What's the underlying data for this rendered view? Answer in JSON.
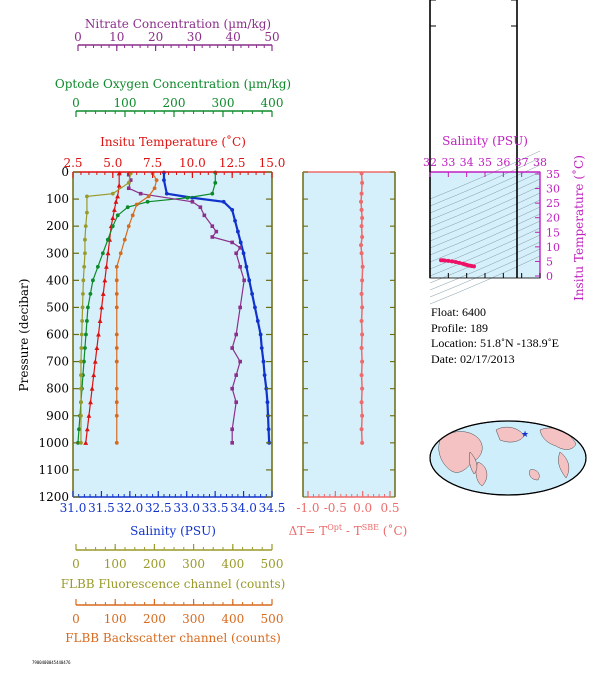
{
  "colors": {
    "nitrate": "#8b2f8b",
    "oxygen": "#0d8a2a",
    "temperature": "#dd1111",
    "salinity": "#1133cc",
    "fluorescence": "#9a9a2a",
    "backscatter": "#d86a1e",
    "delta": "#ee6b6b",
    "plot_bg": "#d5f0fa",
    "ts_salinity": "#c020c0"
  },
  "axes": {
    "nitrate": {
      "label": "Nitrate Concentration (µm/kg)",
      "ticks": [
        "0",
        "10",
        "20",
        "30",
        "40",
        "50"
      ],
      "range": [
        0,
        50
      ]
    },
    "oxygen": {
      "label": "Optode Oxygen Concentration (µm/kg)",
      "ticks": [
        "0",
        "100",
        "200",
        "300",
        "400"
      ],
      "range": [
        0,
        400
      ]
    },
    "temperature": {
      "label": "Insitu Temperature (˚C)",
      "ticks": [
        "2.5",
        "5.0",
        "7.5",
        "10.0",
        "12.5",
        "15.0"
      ],
      "range": [
        2.5,
        15
      ]
    },
    "pressure": {
      "label": "Pressure (decibar)",
      "ticks": [
        "0",
        "100",
        "200",
        "300",
        "400",
        "500",
        "600",
        "700",
        "800",
        "900",
        "1000",
        "1100",
        "1200"
      ],
      "range": [
        0,
        1200
      ]
    },
    "salinity": {
      "label": "Salinity (PSU)",
      "ticks": [
        "31.0",
        "31.5",
        "32.0",
        "32.5",
        "33.0",
        "33.5",
        "34.0",
        "34.5"
      ],
      "range": [
        31,
        34.5
      ]
    },
    "fluorescence": {
      "label": "FLBB Fluorescence channel (counts)",
      "ticks": [
        "0",
        "100",
        "200",
        "300",
        "400",
        "500"
      ],
      "range": [
        0,
        500
      ]
    },
    "backscatter": {
      "label": "FLBB Backscatter channel (counts)",
      "ticks": [
        "0",
        "100",
        "200",
        "300",
        "400",
        "500"
      ],
      "range": [
        0,
        500
      ]
    },
    "delta": {
      "label_main": "ΔT= T",
      "label_sup1": "Opt",
      "label_mid": " - T",
      "label_sup2": "SBE",
      "label_end": " (˚C)",
      "ticks": [
        "-1.0",
        "-0.5",
        "0.0",
        "0.5"
      ],
      "range": [
        -1.0,
        0.5
      ]
    },
    "ts_salinity": {
      "label": "Salinity (PSU)",
      "ticks": [
        "32",
        "33",
        "34",
        "35",
        "36",
        "37",
        "38"
      ],
      "range": [
        32,
        38
      ]
    },
    "ts_temperature": {
      "label": "Insitu Temperature (˚C)",
      "ticks": [
        "0",
        "5",
        "10",
        "15",
        "20",
        "25",
        "30",
        "35"
      ],
      "range": [
        0,
        35
      ]
    }
  },
  "info": {
    "float": "Float:  6400",
    "profile": "Profile:  189",
    "location": "Location:  51.8˚N  -138.9˚E",
    "date": "Date:  02/17/2013"
  },
  "footer_text": "7900400045440476",
  "chart_data": [
    {
      "type": "line",
      "title": "",
      "ylabel": "Pressure (decibar)",
      "ylim": [
        0,
        1200
      ],
      "series": [
        {
          "name": "Insitu Temperature (˚C)",
          "axis": "temperature",
          "x": [
            5.4,
            5.4,
            5.3,
            5.2,
            5.1,
            5.0,
            4.9,
            4.8,
            4.7,
            4.6,
            4.5,
            4.4,
            4.3,
            4.2,
            4.1,
            4.0,
            3.9,
            3.8,
            3.7,
            3.6,
            3.5,
            3.4,
            3.3
          ],
          "y": [
            5,
            50,
            90,
            110,
            140,
            170,
            200,
            250,
            300,
            350,
            400,
            450,
            500,
            550,
            600,
            650,
            700,
            750,
            800,
            850,
            900,
            950,
            1000
          ]
        },
        {
          "name": "Salinity (PSU)",
          "axis": "salinity",
          "x": [
            32.6,
            32.6,
            32.65,
            33.1,
            33.65,
            33.8,
            33.85,
            33.9,
            33.95,
            34.0,
            34.05,
            34.1,
            34.15,
            34.2,
            34.25,
            34.3,
            34.32,
            34.35,
            34.37,
            34.4,
            34.42,
            34.43,
            34.44,
            34.45
          ],
          "y": [
            2,
            30,
            80,
            95,
            110,
            140,
            180,
            220,
            260,
            300,
            350,
            400,
            450,
            500,
            550,
            600,
            650,
            700,
            750,
            800,
            850,
            900,
            950,
            1000
          ]
        },
        {
          "name": "Optode Oxygen Concentration (µm/kg)",
          "axis": "oxygen",
          "x": [
            286,
            286,
            280,
            230,
            150,
            110,
            90,
            80,
            70,
            60,
            50,
            40,
            35,
            30,
            28,
            26,
            24,
            22,
            20,
            18,
            16,
            14,
            12,
            10
          ],
          "y": [
            2,
            40,
            80,
            95,
            110,
            130,
            160,
            200,
            250,
            300,
            350,
            400,
            450,
            500,
            550,
            600,
            650,
            700,
            750,
            800,
            850,
            900,
            950,
            1000
          ]
        },
        {
          "name": "Nitrate Concentration (µm/kg)",
          "axis": "nitrate",
          "x": [
            14,
            14.5,
            14,
            17,
            30,
            32,
            33,
            35,
            36,
            35,
            40,
            42,
            41,
            42,
            43,
            42,
            41,
            40,
            42,
            41,
            40,
            41,
            40,
            40
          ],
          "y": [
            10,
            30,
            60,
            80,
            110,
            130,
            160,
            200,
            220,
            240,
            260,
            280,
            300,
            350,
            400,
            500,
            600,
            650,
            700,
            750,
            800,
            850,
            950,
            1000
          ]
        },
        {
          "name": "FLBB Fluorescence channel (counts)",
          "axis": "fluorescence",
          "x": [
            145,
            140,
            100,
            35,
            35,
            32,
            30,
            30,
            28,
            26,
            25,
            24,
            23,
            22,
            21,
            20,
            20,
            20,
            20,
            20,
            20
          ],
          "y": [
            5,
            40,
            80,
            90,
            150,
            200,
            250,
            300,
            350,
            400,
            450,
            500,
            550,
            600,
            650,
            700,
            750,
            800,
            850,
            900,
            1000
          ]
        },
        {
          "name": "FLBB Backscatter channel (counts)",
          "axis": "backscatter",
          "x": [
            200,
            210,
            205,
            190,
            160,
            150,
            140,
            130,
            120,
            110,
            110,
            110,
            110,
            110,
            110,
            110,
            110,
            110,
            110,
            110
          ],
          "y": [
            5,
            30,
            60,
            90,
            120,
            160,
            200,
            250,
            300,
            350,
            400,
            450,
            500,
            600,
            650,
            700,
            800,
            850,
            900,
            1000
          ]
        }
      ]
    },
    {
      "type": "scatter",
      "title": "",
      "xlabel": "ΔT= T Opt - T SBE (˚C)",
      "xlim": [
        -1.0,
        0.5
      ],
      "ylim": [
        0,
        1200
      ],
      "x": [
        -0.02,
        -0.01,
        -0.02,
        -0.03,
        -0.02,
        -0.01,
        -0.02,
        -0.01,
        -0.03,
        -0.02,
        0.0,
        -0.01,
        -0.02,
        -0.01,
        -0.02,
        -0.01,
        -0.02,
        -0.01,
        -0.02,
        -0.01,
        -0.02,
        -0.01,
        -0.02,
        -0.01
      ],
      "y": [
        5,
        40,
        80,
        110,
        140,
        170,
        200,
        240,
        270,
        300,
        350,
        400,
        450,
        500,
        550,
        600,
        650,
        700,
        750,
        800,
        850,
        900,
        950,
        1000
      ]
    },
    {
      "type": "scatter",
      "title": "",
      "xlabel": "Salinity (PSU)",
      "ylabel": "Insitu Temperature (˚C)",
      "xlim": [
        32,
        38
      ],
      "ylim": [
        0,
        35
      ],
      "x": [
        32.6,
        32.7,
        32.8,
        33.0,
        33.2,
        33.4,
        33.6,
        33.8,
        33.9,
        34.0,
        34.1,
        34.2,
        34.3,
        34.4
      ],
      "y": [
        5.4,
        5.4,
        5.3,
        5.2,
        5.0,
        4.8,
        4.5,
        4.2,
        4.0,
        3.8,
        3.6,
        3.5,
        3.4,
        3.3
      ]
    }
  ]
}
